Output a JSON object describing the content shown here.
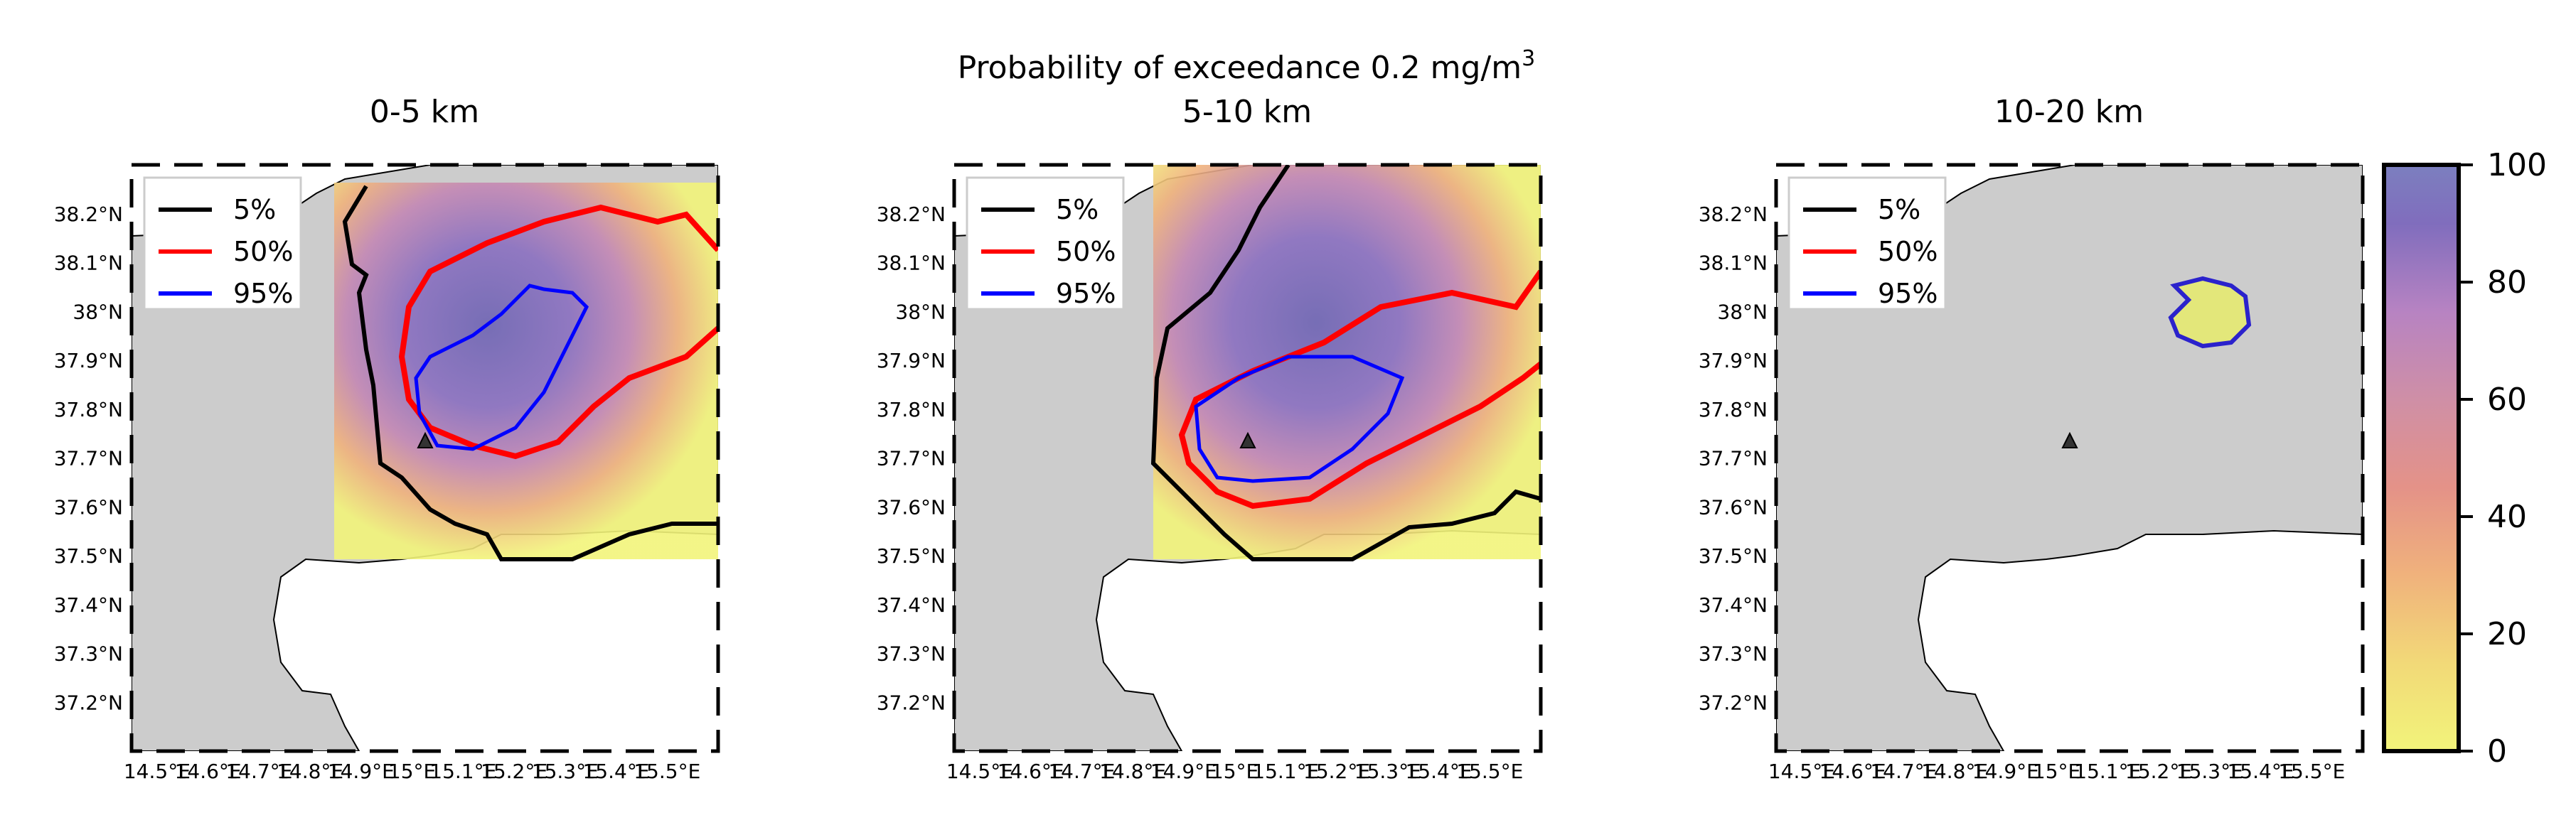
{
  "figure": {
    "title_main": "Probability of exceedance 0.2 mg/m",
    "title_sup": "3"
  },
  "map_extent": {
    "lon": [
      14.45,
      15.6
    ],
    "lat": [
      37.1,
      38.3
    ]
  },
  "vent": {
    "lon": 15.0,
    "lat": 37.73,
    "marker": "triangle-icon"
  },
  "panels": [
    {
      "title": "0-5 km",
      "legend": [
        {
          "label": "5%",
          "color": "#000000"
        },
        {
          "label": "50%",
          "color": "#ff0000"
        },
        {
          "label": "95%",
          "color": "#0000ff"
        }
      ]
    },
    {
      "title": "5-10 km",
      "legend": [
        {
          "label": "5%",
          "color": "#000000"
        },
        {
          "label": "50%",
          "color": "#ff0000"
        },
        {
          "label": "95%",
          "color": "#0000ff"
        }
      ]
    },
    {
      "title": "10-20 km",
      "legend": [
        {
          "label": "5%",
          "color": "#000000"
        },
        {
          "label": "50%",
          "color": "#ff0000"
        },
        {
          "label": "95%",
          "color": "#0000ff"
        }
      ]
    }
  ],
  "axes": {
    "lat_ticks": [
      "38.2°N",
      "38.1°N",
      "38°N",
      "37.9°N",
      "37.8°N",
      "37.7°N",
      "37.6°N",
      "37.5°N",
      "37.4°N",
      "37.3°N",
      "37.2°N"
    ],
    "lon_ticks": [
      "14.5°E",
      "14.6°E",
      "14.7°E",
      "14.8°E",
      "14.9°E",
      "15°E",
      "15.1°E",
      "15.2°E",
      "15.3°E",
      "15.4°E",
      "15.5°E"
    ]
  },
  "colorbar": {
    "ticks": [
      "0",
      "20",
      "40",
      "60",
      "80",
      "100"
    ],
    "range": [
      0,
      100
    ],
    "colors": [
      "#f2f47a",
      "#f2d978",
      "#f0b27c",
      "#e49288",
      "#cf8fa6",
      "#b783c2",
      "#9c70c7",
      "#806dbd",
      "#7c7fbf"
    ]
  },
  "colors": {
    "land": "#cccccc",
    "sea": "#ffffff",
    "contour_5": "#000000",
    "contour_50": "#ff0000",
    "contour_95": "#0000ff"
  }
}
